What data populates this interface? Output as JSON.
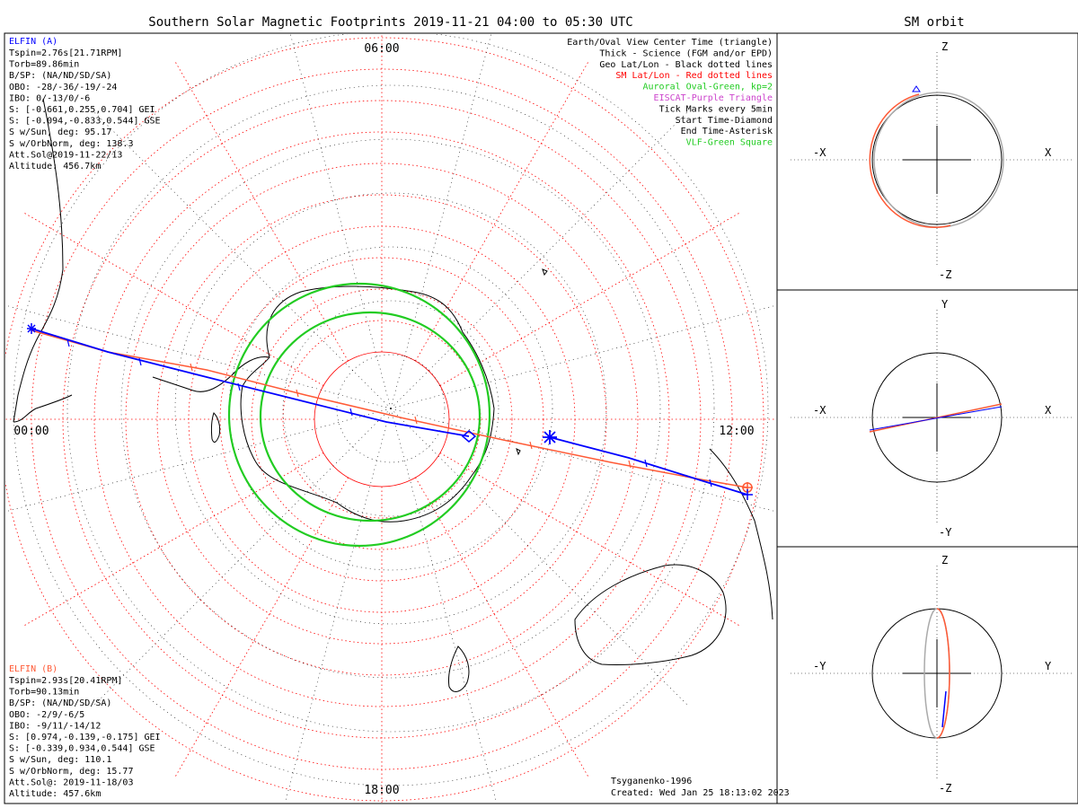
{
  "title": "Southern Solar Magnetic Footprints 2019-11-21 04:00 to 05:30 UTC",
  "orbit_title": "SM orbit",
  "mlt_labels": {
    "top": "06:00",
    "left": "00:00",
    "right": "12:00",
    "bottom": "18:00"
  },
  "elfin_a": {
    "name": "ELFIN (A)",
    "color": "#0000ff",
    "lines": [
      "Tspin=2.76s[21.71RPM]",
      "Torb=89.86min",
      "B/SP: (NA/ND/SD/SA)",
      "OBO: -28/-36/-19/-24",
      "IBO: 0/-13/0/-6",
      "S: [-0.661,0.255,0.704] GEI",
      "S: [-0.094,-0.833,0.544] GSE",
      "S w/Sun, deg: 95.17",
      "S w/OrbNorm, deg: 138.3",
      "Att.Sol@2019-11-22/13",
      "Altitude: 456.7km"
    ]
  },
  "elfin_b": {
    "name": "ELFIN (B)",
    "color": "#ff5a36",
    "lines": [
      "Tspin=2.93s[20.41RPM]",
      "Torb=90.13min",
      "B/SP: (NA/ND/SD/SA)",
      "OBO: -2/9/-6/5",
      "IBO: -9/11/-14/12",
      "S: [0.974,-0.139,-0.175] GEI",
      "S: [-0.339,0.934,0.544] GSE",
      "S w/Sun, deg: 110.1",
      "S w/OrbNorm, deg: 15.77",
      "Att.Sol@: 2019-11-18/03",
      "Altitude: 457.6km"
    ]
  },
  "legend": [
    {
      "text": "Earth/Oval View Center Time (triangle)",
      "color": "#000000"
    },
    {
      "text": "Thick - Science (FGM and/or EPD)",
      "color": "#000000"
    },
    {
      "text": "Geo Lat/Lon - Black dotted lines",
      "color": "#000000"
    },
    {
      "text": "SM Lat/Lon - Red dotted lines",
      "color": "#ff0000"
    },
    {
      "text": "Auroral Oval-Green, kp=2",
      "color": "#22cc22"
    },
    {
      "text": "EISCAT-Purple Triangle",
      "color": "#cc44cc"
    },
    {
      "text": "Tick Marks every 5min",
      "color": "#000000"
    },
    {
      "text": "Start Time-Diamond",
      "color": "#000000"
    },
    {
      "text": "End Time-Asterisk",
      "color": "#000000"
    },
    {
      "text": "VLF-Green Square",
      "color": "#22cc22"
    }
  ],
  "credits": {
    "model": "Tsyganenko-1996",
    "created": "Created: Wed Jan 25 18:13:02 2023"
  },
  "panels": [
    {
      "top": "Z",
      "bottom": "-Z",
      "left": "-X",
      "right": "X"
    },
    {
      "top": "Y",
      "bottom": "-Y",
      "left": "-X",
      "right": "X"
    },
    {
      "top": "Z",
      "bottom": "-Z",
      "left": "-Y",
      "right": "Y"
    }
  ]
}
